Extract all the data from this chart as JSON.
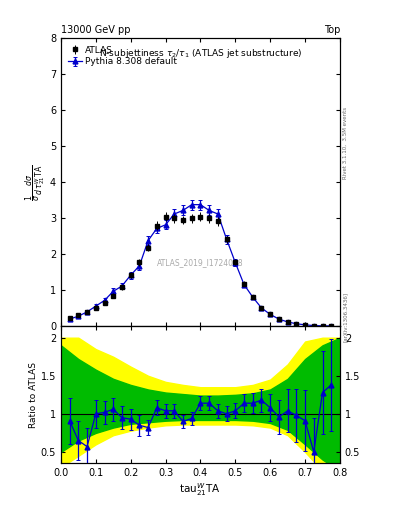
{
  "title_top": "13000 GeV pp",
  "title_right": "Top",
  "plot_title": "N-subjettiness $\\tau_2/\\tau_1$ (ATLAS jet substructure)",
  "watermark": "ATLAS_2019_I1724098",
  "right_label_top": "Rivet 3.1.10,  3.5M events",
  "right_label_bot": "[arXiv:1306.3436]",
  "ylabel_main": "$\\frac{1}{\\sigma}\\frac{d\\sigma}{d\\,\\tau_{21}^{W}\\mathrm{TA}}$",
  "ylabel_ratio": "Ratio to ATLAS",
  "xlabel": "$\\mathrm{tau}_{21}^{W}\\mathrm{TA}$",
  "ylim_main": [
    0,
    8
  ],
  "ylim_ratio": [
    0.35,
    2.15
  ],
  "yticks_main": [
    0,
    1,
    2,
    3,
    4,
    5,
    6,
    7,
    8
  ],
  "yticks_ratio": [
    0.5,
    1.0,
    1.5,
    2.0
  ],
  "xlim": [
    0.0,
    0.8
  ],
  "atlas_x": [
    0.025,
    0.05,
    0.075,
    0.1,
    0.125,
    0.15,
    0.175,
    0.2,
    0.225,
    0.25,
    0.275,
    0.3,
    0.325,
    0.35,
    0.375,
    0.4,
    0.425,
    0.45,
    0.475,
    0.5,
    0.525,
    0.55,
    0.575,
    0.6,
    0.625,
    0.65,
    0.675,
    0.7,
    0.725,
    0.75,
    0.775
  ],
  "atlas_y": [
    0.22,
    0.3,
    0.4,
    0.52,
    0.65,
    0.85,
    1.08,
    1.42,
    1.78,
    2.18,
    2.8,
    3.05,
    3.0,
    2.95,
    3.0,
    3.05,
    3.0,
    2.92,
    2.42,
    1.78,
    1.18,
    0.82,
    0.52,
    0.35,
    0.2,
    0.12,
    0.07,
    0.04,
    0.02,
    0.01,
    0.01
  ],
  "atlas_yerr_lo": [
    0.04,
    0.04,
    0.05,
    0.06,
    0.07,
    0.07,
    0.08,
    0.09,
    0.1,
    0.1,
    0.12,
    0.12,
    0.12,
    0.12,
    0.12,
    0.12,
    0.12,
    0.12,
    0.1,
    0.09,
    0.07,
    0.06,
    0.05,
    0.04,
    0.03,
    0.02,
    0.015,
    0.01,
    0.008,
    0.005,
    0.005
  ],
  "atlas_yerr_hi": [
    0.04,
    0.04,
    0.05,
    0.06,
    0.07,
    0.07,
    0.08,
    0.09,
    0.1,
    0.1,
    0.12,
    0.12,
    0.12,
    0.12,
    0.12,
    0.12,
    0.12,
    0.12,
    0.1,
    0.09,
    0.07,
    0.06,
    0.05,
    0.04,
    0.03,
    0.02,
    0.015,
    0.01,
    0.008,
    0.005,
    0.005
  ],
  "mc_x": [
    0.025,
    0.05,
    0.075,
    0.1,
    0.125,
    0.15,
    0.175,
    0.2,
    0.225,
    0.25,
    0.275,
    0.3,
    0.325,
    0.35,
    0.375,
    0.4,
    0.425,
    0.45,
    0.475,
    0.5,
    0.525,
    0.55,
    0.575,
    0.6,
    0.625,
    0.65,
    0.675,
    0.7,
    0.725,
    0.75,
    0.775
  ],
  "mc_y": [
    0.2,
    0.28,
    0.4,
    0.56,
    0.72,
    0.97,
    1.12,
    1.42,
    1.68,
    2.38,
    2.72,
    2.82,
    3.12,
    3.22,
    3.38,
    3.38,
    3.22,
    3.12,
    2.42,
    1.77,
    1.16,
    0.81,
    0.51,
    0.33,
    0.2,
    0.12,
    0.07,
    0.04,
    0.02,
    0.01,
    0.01
  ],
  "mc_yerr_lo": [
    0.04,
    0.04,
    0.05,
    0.06,
    0.07,
    0.08,
    0.09,
    0.1,
    0.11,
    0.12,
    0.13,
    0.13,
    0.14,
    0.14,
    0.14,
    0.14,
    0.14,
    0.14,
    0.12,
    0.1,
    0.08,
    0.06,
    0.05,
    0.04,
    0.03,
    0.02,
    0.015,
    0.01,
    0.008,
    0.005,
    0.005
  ],
  "mc_yerr_hi": [
    0.04,
    0.04,
    0.05,
    0.06,
    0.07,
    0.08,
    0.09,
    0.1,
    0.11,
    0.12,
    0.13,
    0.13,
    0.14,
    0.14,
    0.14,
    0.14,
    0.14,
    0.14,
    0.12,
    0.1,
    0.08,
    0.06,
    0.05,
    0.04,
    0.03,
    0.02,
    0.015,
    0.01,
    0.008,
    0.005,
    0.005
  ],
  "ratio_x": [
    0.025,
    0.05,
    0.075,
    0.1,
    0.125,
    0.15,
    0.175,
    0.2,
    0.225,
    0.25,
    0.275,
    0.3,
    0.325,
    0.35,
    0.375,
    0.4,
    0.425,
    0.45,
    0.475,
    0.5,
    0.525,
    0.55,
    0.575,
    0.6,
    0.625,
    0.65,
    0.675,
    0.7,
    0.725,
    0.75,
    0.775
  ],
  "ratio_y": [
    0.91,
    0.65,
    0.57,
    1.0,
    1.02,
    1.06,
    0.95,
    0.93,
    0.85,
    0.82,
    1.08,
    1.04,
    1.04,
    0.9,
    0.94,
    1.14,
    1.14,
    1.04,
    1.0,
    1.04,
    1.14,
    1.14,
    1.18,
    1.08,
    0.96,
    1.04,
    0.98,
    0.91,
    0.5,
    1.28,
    1.38
  ],
  "ratio_yerr_lo": [
    0.3,
    0.25,
    0.25,
    0.18,
    0.15,
    0.15,
    0.15,
    0.14,
    0.14,
    0.1,
    0.1,
    0.09,
    0.09,
    0.09,
    0.09,
    0.09,
    0.09,
    0.09,
    0.1,
    0.1,
    0.12,
    0.13,
    0.15,
    0.18,
    0.22,
    0.28,
    0.35,
    0.4,
    0.45,
    0.55,
    0.6
  ],
  "ratio_yerr_hi": [
    0.3,
    0.25,
    0.25,
    0.18,
    0.15,
    0.15,
    0.15,
    0.14,
    0.14,
    0.1,
    0.1,
    0.09,
    0.09,
    0.09,
    0.09,
    0.09,
    0.09,
    0.09,
    0.1,
    0.1,
    0.12,
    0.13,
    0.15,
    0.18,
    0.22,
    0.28,
    0.35,
    0.4,
    0.45,
    0.55,
    0.6
  ],
  "band_yellow_x": [
    0.0,
    0.05,
    0.1,
    0.15,
    0.2,
    0.25,
    0.3,
    0.35,
    0.4,
    0.45,
    0.5,
    0.55,
    0.6,
    0.65,
    0.7,
    0.75,
    0.8
  ],
  "band_yellow_lo": [
    0.3,
    0.45,
    0.6,
    0.72,
    0.78,
    0.82,
    0.85,
    0.86,
    0.86,
    0.86,
    0.86,
    0.85,
    0.82,
    0.72,
    0.5,
    0.25,
    0.15
  ],
  "band_yellow_hi": [
    2.0,
    2.0,
    1.85,
    1.75,
    1.62,
    1.5,
    1.42,
    1.38,
    1.35,
    1.35,
    1.35,
    1.38,
    1.45,
    1.65,
    1.95,
    2.0,
    2.0
  ],
  "band_green_x": [
    0.0,
    0.05,
    0.1,
    0.15,
    0.2,
    0.25,
    0.3,
    0.35,
    0.4,
    0.45,
    0.5,
    0.55,
    0.6,
    0.65,
    0.7,
    0.75,
    0.8
  ],
  "band_green_lo": [
    0.5,
    0.65,
    0.75,
    0.82,
    0.87,
    0.89,
    0.91,
    0.92,
    0.92,
    0.92,
    0.92,
    0.91,
    0.88,
    0.79,
    0.6,
    0.4,
    0.25
  ],
  "band_green_hi": [
    1.9,
    1.72,
    1.58,
    1.46,
    1.38,
    1.32,
    1.28,
    1.26,
    1.24,
    1.24,
    1.25,
    1.27,
    1.32,
    1.46,
    1.72,
    1.9,
    2.0
  ],
  "color_atlas": "#000000",
  "color_mc": "#0000cc",
  "color_yellow": "#ffff00",
  "color_green": "#00bb00",
  "atlas_marker": "s",
  "mc_marker": "^",
  "background_color": "#ffffff",
  "legend_label_atlas": "ATLAS",
  "legend_label_mc": "Pythia 8.308 default"
}
